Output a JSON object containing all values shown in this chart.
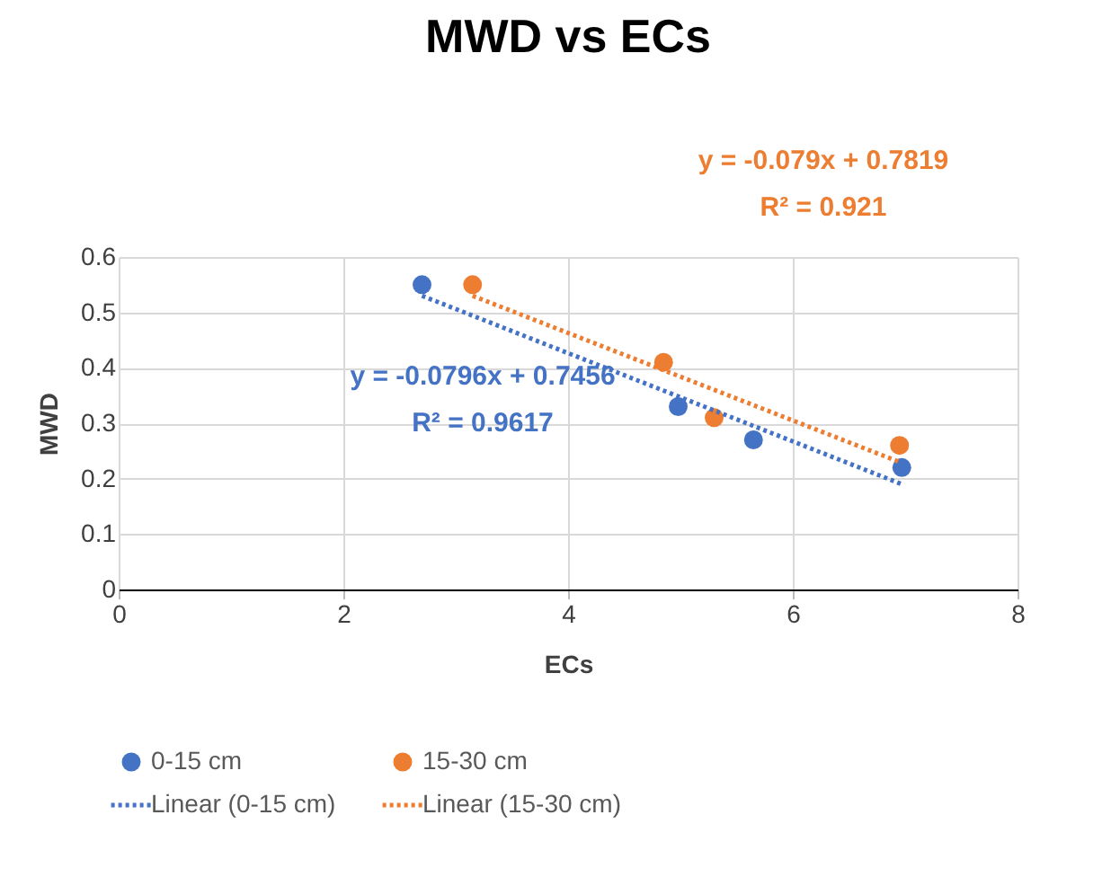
{
  "chart_data": {
    "type": "scatter",
    "title": "MWD vs ECs",
    "xlabel": "ECs",
    "ylabel": "MWD",
    "xlim": [
      0,
      8
    ],
    "xticks": [
      0,
      2,
      4,
      6,
      8
    ],
    "ylim": [
      0,
      0.6
    ],
    "yticks": [
      0,
      0.1,
      0.2,
      0.3,
      0.4,
      0.5,
      0.6
    ],
    "grid": true,
    "legend": "bottom",
    "series": [
      {
        "name": "0-15 cm",
        "type": "scatter",
        "marker": "circle",
        "color": "#4472c4",
        "x": [
          2.7,
          4.98,
          5.65,
          6.97
        ],
        "values": [
          0.55,
          0.33,
          0.27,
          0.22
        ]
      },
      {
        "name": "15-30 cm",
        "type": "scatter",
        "marker": "circle",
        "color": "#ed7d31",
        "x": [
          3.15,
          4.85,
          5.3,
          6.95
        ],
        "values": [
          0.55,
          0.41,
          0.31,
          0.26
        ]
      },
      {
        "name": "Linear (0-15 cm)",
        "type": "line",
        "marker": "none",
        "line_style": "dotted",
        "color": "#4472c4",
        "x": [
          2.7,
          6.97
        ],
        "values": [
          0.53,
          0.19
        ]
      },
      {
        "name": "Linear (15-30 cm)",
        "type": "line",
        "marker": "none",
        "line_style": "dotted",
        "color": "#ed7d31",
        "x": [
          3.15,
          6.95
        ],
        "values": [
          0.53,
          0.23
        ]
      }
    ],
    "annotations": [
      "y = -0.0796x + 0.7456",
      "R² = 0.9617",
      "y = -0.079x + 0.7819",
      "R² = 0.921"
    ]
  }
}
